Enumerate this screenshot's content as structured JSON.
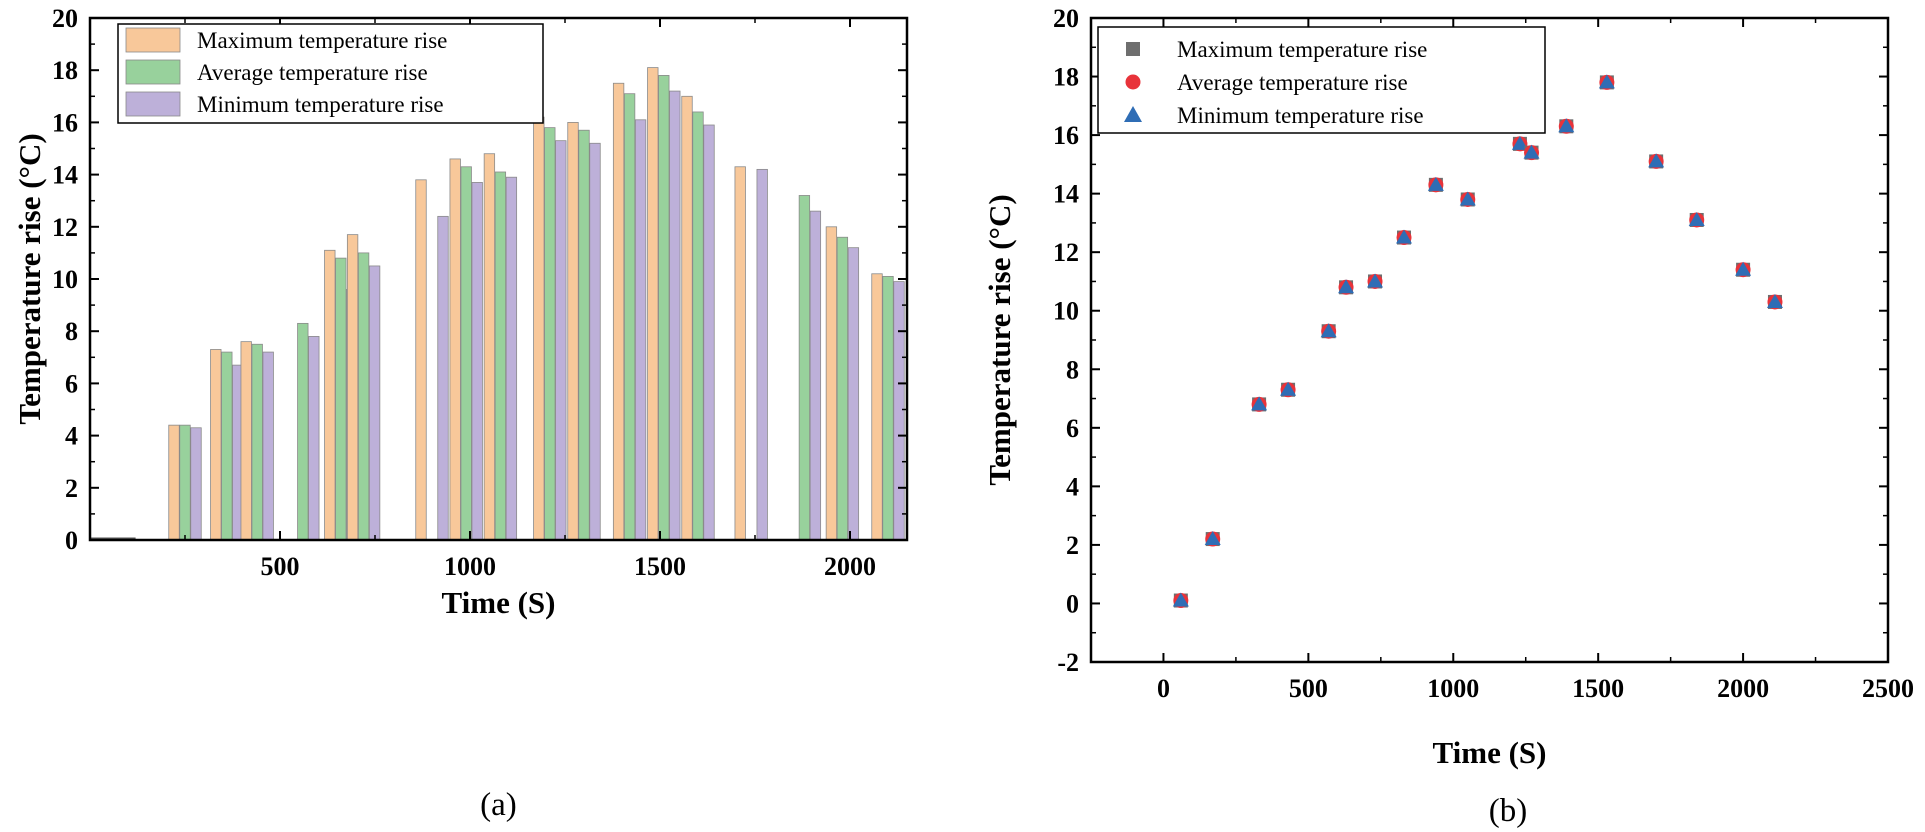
{
  "chart_data": [
    {
      "type": "bar",
      "caption": "(a)",
      "xlabel": "Time (S)",
      "ylabel": "Temperature rise (°C)",
      "xlim": [
        0,
        2150
      ],
      "ylim": [
        0,
        20
      ],
      "xticks": [
        500,
        1000,
        1500,
        2000
      ],
      "yticks": [
        0,
        2,
        4,
        6,
        8,
        10,
        12,
        14,
        16,
        18,
        20
      ],
      "grid": false,
      "legend_position": "top-left",
      "series": [
        {
          "name": "Maximum temperature rise",
          "color": "#F8C89A"
        },
        {
          "name": "Average temperature rise",
          "color": "#98D19C"
        },
        {
          "name": "Minimum temperature rise",
          "color": "#BDB0D9"
        }
      ],
      "x": [
        0,
        250,
        360,
        440,
        560,
        660,
        720,
        900,
        990,
        1080,
        1210,
        1300,
        1420,
        1510,
        1600,
        1740,
        1880,
        1980,
        2100
      ],
      "values": [
        [
          0,
          4.4,
          7.3,
          7.6,
          0,
          11.1,
          11.7,
          13.8,
          14.6,
          14.8,
          16.2,
          16.0,
          17.5,
          18.1,
          17.0,
          14.3,
          0,
          12.0,
          10.2
        ],
        [
          0,
          4.4,
          7.2,
          7.5,
          8.3,
          10.8,
          11.0,
          0,
          14.3,
          14.1,
          15.8,
          15.7,
          17.1,
          17.8,
          16.4,
          0,
          13.2,
          11.6,
          10.1
        ],
        [
          0,
          4.3,
          6.7,
          7.2,
          7.8,
          9.6,
          10.5,
          12.4,
          13.7,
          13.9,
          15.3,
          15.2,
          16.1,
          17.2,
          15.9,
          14.2,
          12.6,
          11.2,
          9.9
        ]
      ]
    },
    {
      "type": "scatter",
      "caption": "(b)",
      "xlabel": "Time (S)",
      "ylabel": "Temperature rise (°C)",
      "xlim": [
        -250,
        2500
      ],
      "ylim": [
        -2,
        20
      ],
      "xticks": [
        0,
        500,
        1000,
        1500,
        2000,
        2500
      ],
      "yticks": [
        -2,
        0,
        2,
        4,
        6,
        8,
        10,
        12,
        14,
        16,
        18,
        20
      ],
      "grid": false,
      "legend_position": "top-left",
      "series": [
        {
          "name": "Maximum temperature rise",
          "marker": "square",
          "color": "#6E6E6E"
        },
        {
          "name": "Average temperature rise",
          "marker": "circle",
          "color": "#E8333A"
        },
        {
          "name": "Minimum temperature rise",
          "marker": "triangle",
          "color": "#2F6DB5"
        }
      ],
      "x": [
        60,
        170,
        330,
        430,
        570,
        630,
        730,
        830,
        940,
        1050,
        1230,
        1270,
        1390,
        1530,
        1700,
        1840,
        2000,
        2110
      ],
      "y": [
        0.1,
        2.2,
        6.8,
        7.3,
        9.3,
        10.8,
        11.0,
        12.5,
        14.3,
        13.8,
        15.7,
        15.4,
        16.3,
        17.8,
        15.1,
        13.1,
        11.4,
        10.3
      ]
    }
  ]
}
